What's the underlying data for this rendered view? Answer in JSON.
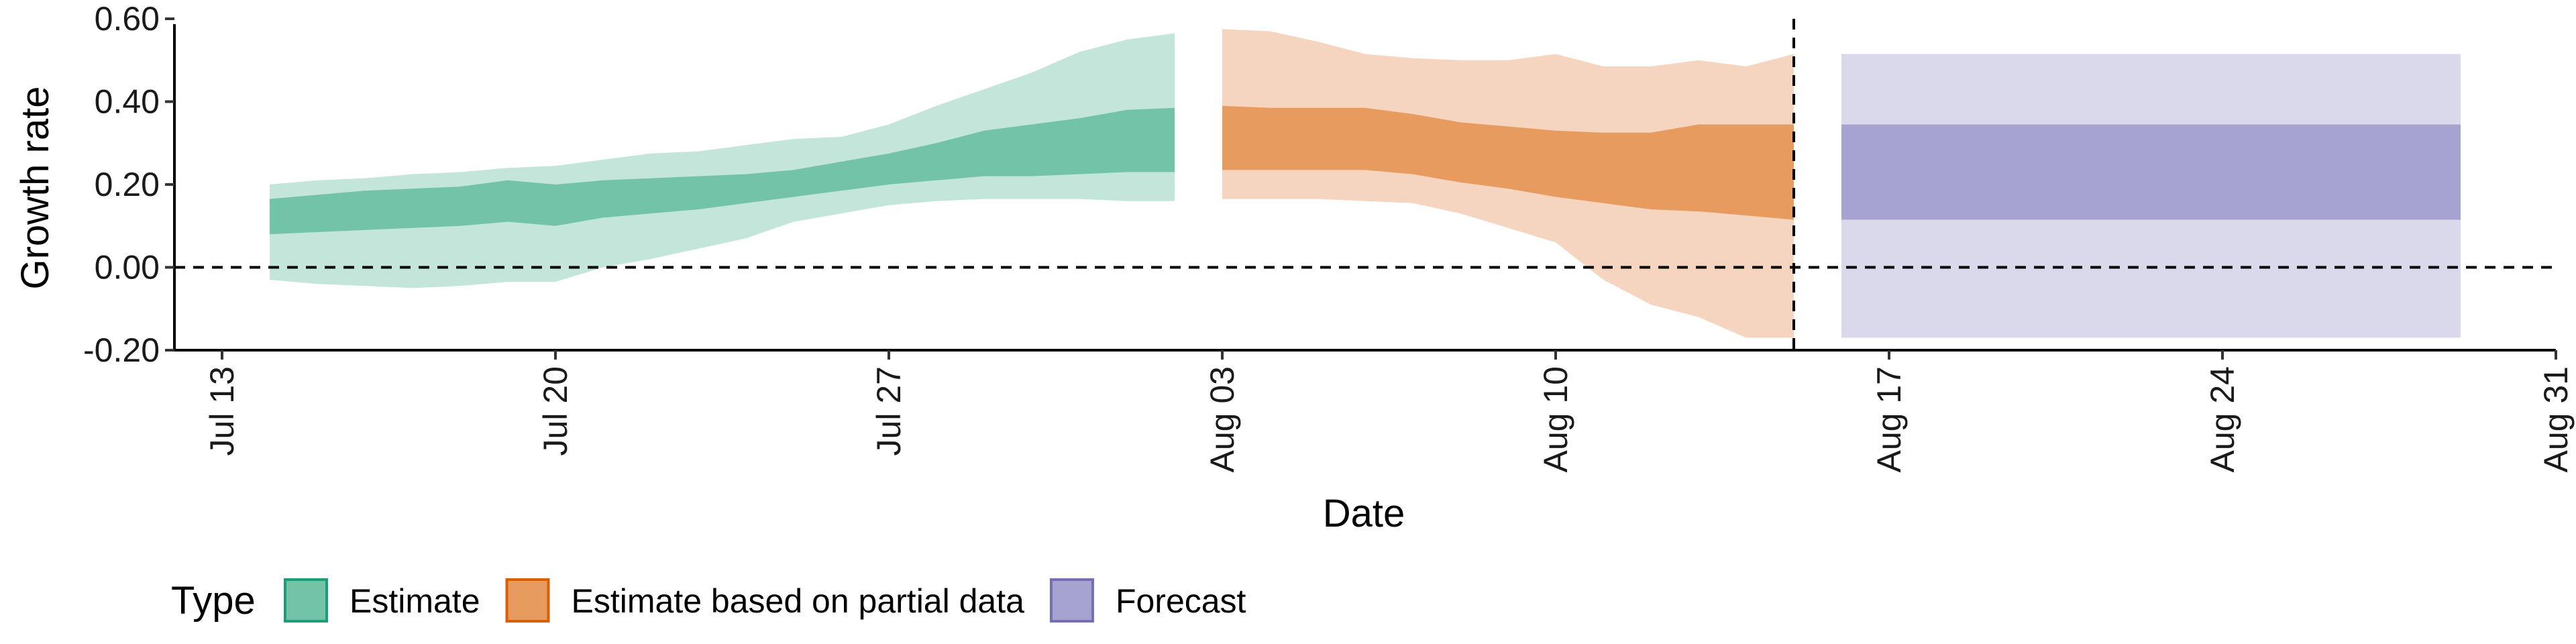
{
  "chart_data": {
    "type": "area",
    "title": "",
    "xlabel": "Date",
    "ylabel": "Growth rate",
    "x_tick_labels": [
      "Jul 13",
      "Jul 20",
      "Jul 27",
      "Aug 03",
      "Aug 10",
      "Aug 17",
      "Aug 24",
      "Aug 31"
    ],
    "x_tick_dates": [
      "2020-07-13",
      "2020-07-20",
      "2020-07-27",
      "2020-08-03",
      "2020-08-10",
      "2020-08-17",
      "2020-08-24",
      "2020-08-31"
    ],
    "xlim": [
      "2020-07-12",
      "2020-08-31"
    ],
    "y_tick_labels": [
      "-0.20",
      "0.00",
      "0.20",
      "0.40",
      "0.60"
    ],
    "y_ticks": [
      -0.2,
      0,
      0.2,
      0.4,
      0.6
    ],
    "ylim": [
      -0.2,
      0.6
    ],
    "reference_lines": [
      {
        "orientation": "horizontal",
        "value": 0,
        "style": "dashed"
      },
      {
        "orientation": "vertical",
        "value": "2020-08-15",
        "style": "dashed"
      }
    ],
    "legend": {
      "title": "Type",
      "position": "bottom",
      "entries": [
        {
          "label": "Estimate",
          "fill": "#72c3a7",
          "stroke": "#1b9e77"
        },
        {
          "label": "Estimate based on partial data",
          "fill": "#e89b5f",
          "stroke": "#d95f02"
        },
        {
          "label": "Forecast",
          "fill": "#a6a3d0",
          "stroke": "#7570b3"
        }
      ]
    },
    "series": [
      {
        "name": "Estimate",
        "color_inner": "#72c3a7",
        "color_outer": "#c4e6da",
        "dates": [
          "2020-07-14",
          "2020-07-15",
          "2020-07-16",
          "2020-07-17",
          "2020-07-18",
          "2020-07-19",
          "2020-07-20",
          "2020-07-21",
          "2020-07-22",
          "2020-07-23",
          "2020-07-24",
          "2020-07-25",
          "2020-07-26",
          "2020-07-27",
          "2020-07-28",
          "2020-07-29",
          "2020-07-30",
          "2020-07-31",
          "2020-08-01",
          "2020-08-02"
        ],
        "lower_90": [
          -0.03,
          -0.04,
          -0.045,
          -0.05,
          -0.045,
          -0.035,
          -0.035,
          0.0,
          0.02,
          0.045,
          0.07,
          0.11,
          0.13,
          0.15,
          0.16,
          0.165,
          0.165,
          0.165,
          0.16,
          0.16
        ],
        "lower_50": [
          0.08,
          0.085,
          0.09,
          0.095,
          0.1,
          0.11,
          0.1,
          0.12,
          0.13,
          0.14,
          0.155,
          0.17,
          0.185,
          0.2,
          0.21,
          0.22,
          0.22,
          0.225,
          0.23,
          0.23
        ],
        "upper_50": [
          0.165,
          0.175,
          0.185,
          0.19,
          0.195,
          0.21,
          0.2,
          0.21,
          0.215,
          0.22,
          0.225,
          0.235,
          0.255,
          0.275,
          0.3,
          0.33,
          0.345,
          0.36,
          0.38,
          0.385
        ],
        "upper_90": [
          0.2,
          0.21,
          0.215,
          0.225,
          0.23,
          0.24,
          0.245,
          0.26,
          0.275,
          0.28,
          0.295,
          0.31,
          0.315,
          0.345,
          0.39,
          0.43,
          0.47,
          0.52,
          0.55,
          0.565
        ]
      },
      {
        "name": "Estimate based on partial data",
        "color_inner": "#e89b5f",
        "color_outer": "#f5d5bf",
        "dates": [
          "2020-08-03",
          "2020-08-04",
          "2020-08-05",
          "2020-08-06",
          "2020-08-07",
          "2020-08-08",
          "2020-08-09",
          "2020-08-10",
          "2020-08-11",
          "2020-08-12",
          "2020-08-13",
          "2020-08-14",
          "2020-08-15"
        ],
        "lower_90": [
          0.165,
          0.165,
          0.165,
          0.16,
          0.155,
          0.13,
          0.095,
          0.06,
          -0.03,
          -0.09,
          -0.12,
          -0.17,
          -0.17
        ],
        "lower_50": [
          0.235,
          0.235,
          0.235,
          0.235,
          0.225,
          0.205,
          0.19,
          0.17,
          0.155,
          0.14,
          0.135,
          0.125,
          0.115
        ],
        "upper_50": [
          0.39,
          0.385,
          0.385,
          0.385,
          0.37,
          0.35,
          0.34,
          0.33,
          0.325,
          0.325,
          0.345,
          0.345,
          0.345
        ],
        "upper_90": [
          0.575,
          0.57,
          0.545,
          0.515,
          0.505,
          0.5,
          0.5,
          0.515,
          0.485,
          0.485,
          0.5,
          0.485,
          0.515
        ]
      },
      {
        "name": "Forecast",
        "color_inner": "#a6a3d0",
        "color_outer": "#dad9ec",
        "dates": [
          "2020-08-16",
          "2020-08-29"
        ],
        "lower_90": [
          -0.17,
          -0.17
        ],
        "lower_50": [
          0.115,
          0.115
        ],
        "upper_50": [
          0.345,
          0.345
        ],
        "upper_90": [
          0.515,
          0.515
        ]
      }
    ]
  }
}
